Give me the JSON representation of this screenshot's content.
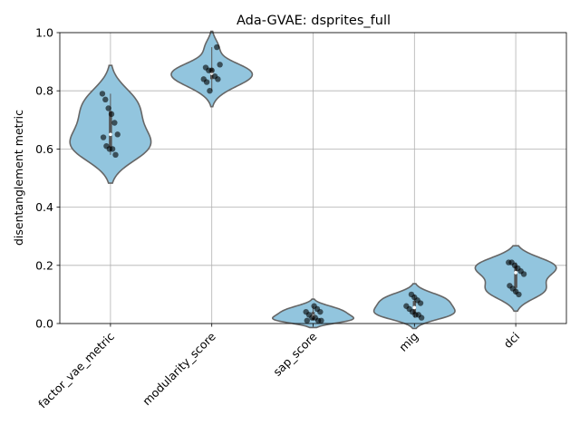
{
  "chart_data": {
    "type": "violin",
    "title": "Ada-GVAE: dsprites_full",
    "xlabel": "",
    "ylabel": "disentanglement metric",
    "ylim": [
      0,
      1
    ],
    "yticks": [
      "0.0",
      "0.2",
      "0.4",
      "0.6",
      "0.8",
      "1.0"
    ],
    "grid": true,
    "violin_color": "#92C5DE",
    "point_color": "#000000",
    "categories": [
      "factor_vae_metric",
      "modularity_score",
      "sap_score",
      "mig",
      "dci"
    ],
    "series": [
      {
        "values": [
          0.79,
          0.77,
          0.74,
          0.72,
          0.69,
          0.65,
          0.64,
          0.61,
          0.6,
          0.6,
          0.58
        ]
      },
      {
        "values": [
          0.95,
          0.89,
          0.88,
          0.87,
          0.87,
          0.85,
          0.84,
          0.84,
          0.83,
          0.8
        ]
      },
      {
        "values": [
          0.06,
          0.05,
          0.04,
          0.04,
          0.03,
          0.02,
          0.02,
          0.01,
          0.01,
          0.01
        ]
      },
      {
        "values": [
          0.1,
          0.09,
          0.08,
          0.07,
          0.06,
          0.05,
          0.04,
          0.03,
          0.03,
          0.02
        ]
      },
      {
        "values": [
          0.21,
          0.21,
          0.2,
          0.19,
          0.18,
          0.17,
          0.13,
          0.12,
          0.11,
          0.1
        ]
      }
    ]
  }
}
